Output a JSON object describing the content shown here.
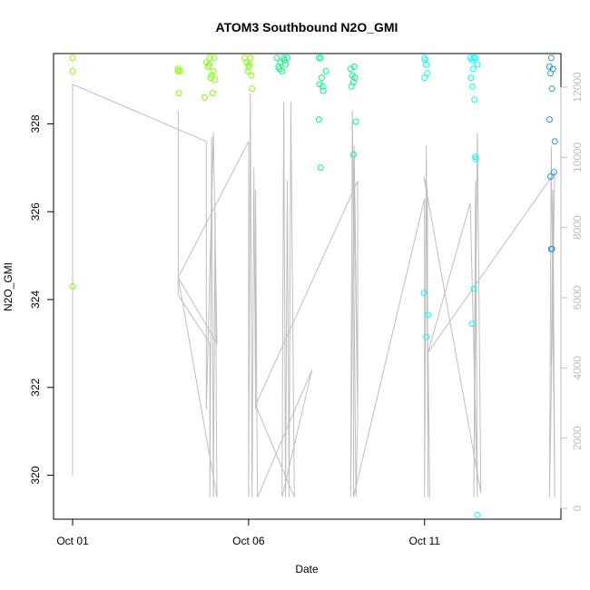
{
  "chart_data": {
    "type": "scatter",
    "title": "ATOM3 Southbound N2O_GMI",
    "xlabel": "Date",
    "ylabel": "N2O_GMI",
    "xlim": [
      0.0,
      14.0
    ],
    "ylim": [
      319.0,
      329.6
    ],
    "x_ticks": [
      {
        "value": 0,
        "label": "Oct 01"
      },
      {
        "value": 5,
        "label": "Oct 06"
      },
      {
        "value": 10,
        "label": "Oct 11"
      }
    ],
    "y_ticks": [
      320,
      322,
      324,
      326,
      328
    ],
    "y2": {
      "description": "secondary axis (right), grey",
      "lim": [
        0,
        12700
      ],
      "ticks": [
        0,
        2000,
        4000,
        6000,
        8000,
        10000,
        12000
      ],
      "color": "#bebebe"
    },
    "grid": false,
    "legend": "none",
    "point_colors": [
      "#7FFF00",
      "#00FF7F",
      "#00FFFF",
      "#1E9BE0"
    ],
    "points": [
      {
        "x": 0.0,
        "y": 329.5,
        "c": 0
      },
      {
        "x": 0.0,
        "y": 329.2,
        "c": 0
      },
      {
        "x": 0.0,
        "y": 324.3,
        "c": 0
      },
      {
        "x": 3.0,
        "y": 329.25,
        "c": 0
      },
      {
        "x": 3.0,
        "y": 329.2,
        "c": 0
      },
      {
        "x": 3.02,
        "y": 328.7,
        "c": 0
      },
      {
        "x": 3.05,
        "y": 329.2,
        "c": 0
      },
      {
        "x": 3.8,
        "y": 329.4,
        "c": 0
      },
      {
        "x": 3.85,
        "y": 329.3,
        "c": 0
      },
      {
        "x": 3.9,
        "y": 329.5,
        "c": 0
      },
      {
        "x": 3.95,
        "y": 329.1,
        "c": 0
      },
      {
        "x": 4.0,
        "y": 329.2,
        "c": 0
      },
      {
        "x": 3.92,
        "y": 329.05,
        "c": 0
      },
      {
        "x": 4.02,
        "y": 329.5,
        "c": 0
      },
      {
        "x": 4.05,
        "y": 329.0,
        "c": 0
      },
      {
        "x": 3.75,
        "y": 328.6,
        "c": 0
      },
      {
        "x": 3.98,
        "y": 328.7,
        "c": 0
      },
      {
        "x": 3.88,
        "y": 329.35,
        "c": 0
      },
      {
        "x": 4.9,
        "y": 329.5,
        "c": 0
      },
      {
        "x": 4.95,
        "y": 329.4,
        "c": 0
      },
      {
        "x": 5.0,
        "y": 329.3,
        "c": 0
      },
      {
        "x": 5.05,
        "y": 329.5,
        "c": 0
      },
      {
        "x": 5.08,
        "y": 329.1,
        "c": 0
      },
      {
        "x": 5.1,
        "y": 328.8,
        "c": 0
      },
      {
        "x": 5.02,
        "y": 329.35,
        "c": 0
      },
      {
        "x": 4.98,
        "y": 329.2,
        "c": 0
      },
      {
        "x": 5.8,
        "y": 329.5,
        "c": 1
      },
      {
        "x": 5.85,
        "y": 329.3,
        "c": 1
      },
      {
        "x": 5.9,
        "y": 329.4,
        "c": 1
      },
      {
        "x": 5.95,
        "y": 329.2,
        "c": 1
      },
      {
        "x": 6.0,
        "y": 329.5,
        "c": 1
      },
      {
        "x": 6.05,
        "y": 329.35,
        "c": 1
      },
      {
        "x": 6.1,
        "y": 329.5,
        "c": 1
      },
      {
        "x": 5.88,
        "y": 329.25,
        "c": 1
      },
      {
        "x": 6.02,
        "y": 329.45,
        "c": 1
      },
      {
        "x": 7.0,
        "y": 329.5,
        "c": 1
      },
      {
        "x": 7.05,
        "y": 329.5,
        "c": 1
      },
      {
        "x": 7.02,
        "y": 328.9,
        "c": 1
      },
      {
        "x": 7.08,
        "y": 329.05,
        "c": 1
      },
      {
        "x": 7.1,
        "y": 328.85,
        "c": 1
      },
      {
        "x": 7.12,
        "y": 328.75,
        "c": 1
      },
      {
        "x": 7.2,
        "y": 329.2,
        "c": 1
      },
      {
        "x": 7.0,
        "y": 328.1,
        "c": 1
      },
      {
        "x": 7.05,
        "y": 327.0,
        "c": 1
      },
      {
        "x": 7.9,
        "y": 329.25,
        "c": 1
      },
      {
        "x": 7.95,
        "y": 329.1,
        "c": 1
      },
      {
        "x": 8.0,
        "y": 329.3,
        "c": 1
      },
      {
        "x": 8.02,
        "y": 329.05,
        "c": 1
      },
      {
        "x": 7.98,
        "y": 328.95,
        "c": 1
      },
      {
        "x": 7.92,
        "y": 328.85,
        "c": 1
      },
      {
        "x": 8.05,
        "y": 328.05,
        "c": 1
      },
      {
        "x": 7.98,
        "y": 327.3,
        "c": 1
      },
      {
        "x": 10.0,
        "y": 329.5,
        "c": 2
      },
      {
        "x": 10.02,
        "y": 329.45,
        "c": 2
      },
      {
        "x": 10.05,
        "y": 329.35,
        "c": 2
      },
      {
        "x": 10.08,
        "y": 329.15,
        "c": 2
      },
      {
        "x": 10.0,
        "y": 329.05,
        "c": 2
      },
      {
        "x": 9.98,
        "y": 324.15,
        "c": 2
      },
      {
        "x": 10.1,
        "y": 323.65,
        "c": 2
      },
      {
        "x": 10.05,
        "y": 323.15,
        "c": 2
      },
      {
        "x": 11.3,
        "y": 329.5,
        "c": 2
      },
      {
        "x": 11.35,
        "y": 329.45,
        "c": 2
      },
      {
        "x": 11.4,
        "y": 329.5,
        "c": 2
      },
      {
        "x": 11.45,
        "y": 329.5,
        "c": 2
      },
      {
        "x": 11.5,
        "y": 329.35,
        "c": 2
      },
      {
        "x": 11.38,
        "y": 329.25,
        "c": 2
      },
      {
        "x": 11.32,
        "y": 329.05,
        "c": 2
      },
      {
        "x": 11.36,
        "y": 328.85,
        "c": 2
      },
      {
        "x": 11.42,
        "y": 328.55,
        "c": 2
      },
      {
        "x": 11.44,
        "y": 327.25,
        "c": 2
      },
      {
        "x": 11.46,
        "y": 327.2,
        "c": 2
      },
      {
        "x": 11.4,
        "y": 324.25,
        "c": 2
      },
      {
        "x": 11.35,
        "y": 323.45,
        "c": 2
      },
      {
        "x": 11.5,
        "y": 319.1,
        "c": 2
      },
      {
        "x": 13.6,
        "y": 329.5,
        "c": 3
      },
      {
        "x": 13.55,
        "y": 329.3,
        "c": 3
      },
      {
        "x": 13.58,
        "y": 329.15,
        "c": 3
      },
      {
        "x": 13.65,
        "y": 329.25,
        "c": 3
      },
      {
        "x": 13.62,
        "y": 328.8,
        "c": 3
      },
      {
        "x": 13.55,
        "y": 328.1,
        "c": 3
      },
      {
        "x": 13.7,
        "y": 327.6,
        "c": 3
      },
      {
        "x": 13.68,
        "y": 326.9,
        "c": 3
      },
      {
        "x": 13.58,
        "y": 326.8,
        "c": 3
      },
      {
        "x": 13.6,
        "y": 325.15,
        "c": 3
      },
      {
        "x": 13.62,
        "y": 325.15,
        "c": 3
      }
    ],
    "trace": [
      [
        0.0,
        320.0
      ],
      [
        0.0,
        328.9
      ],
      [
        3.8,
        327.6
      ],
      [
        3.8,
        321.5
      ],
      [
        4.0,
        327.8
      ],
      [
        4.05,
        325.5
      ],
      [
        4.1,
        323.0
      ],
      [
        3.0,
        324.5
      ],
      [
        3.0,
        328.3
      ],
      [
        3.0,
        324.1
      ],
      [
        3.9,
        323.0
      ],
      [
        3.9,
        319.5
      ],
      [
        3.95,
        327.7
      ],
      [
        4.0,
        319.5
      ],
      [
        4.05,
        326.0
      ],
      [
        4.1,
        319.5
      ],
      [
        3.0,
        324.5
      ],
      [
        5.0,
        327.6
      ],
      [
        5.0,
        319.5
      ],
      [
        5.05,
        328.7
      ],
      [
        5.1,
        319.5
      ],
      [
        5.15,
        327.0
      ],
      [
        5.2,
        321.5
      ],
      [
        5.2,
        326.5
      ],
      [
        5.25,
        319.5
      ],
      [
        6.8,
        322.4
      ],
      [
        5.95,
        319.5
      ],
      [
        6.0,
        328.5
      ],
      [
        6.05,
        319.5
      ],
      [
        6.1,
        326.7
      ],
      [
        6.15,
        319.5
      ],
      [
        6.2,
        328.5
      ],
      [
        6.3,
        319.5
      ],
      [
        5.2,
        321.6
      ],
      [
        8.1,
        326.7
      ],
      [
        8.1,
        321.5
      ],
      [
        8.0,
        327.5
      ],
      [
        7.9,
        319.5
      ],
      [
        7.95,
        328.3
      ],
      [
        8.05,
        319.5
      ],
      [
        8.1,
        321.3
      ],
      [
        8.0,
        326.6
      ],
      [
        7.98,
        319.5
      ],
      [
        10.0,
        326.3
      ],
      [
        10.0,
        319.5
      ],
      [
        10.05,
        327.5
      ],
      [
        10.1,
        319.5
      ],
      [
        10.08,
        326.5
      ],
      [
        9.98,
        326.8
      ],
      [
        11.6,
        319.6
      ],
      [
        11.5,
        327.8
      ],
      [
        11.4,
        319.5
      ],
      [
        11.45,
        326.7
      ],
      [
        11.5,
        319.5
      ],
      [
        11.3,
        326.2
      ],
      [
        10.1,
        322.8
      ],
      [
        10.15,
        319.5
      ],
      [
        10.1,
        322.8
      ],
      [
        13.7,
        326.9
      ],
      [
        13.55,
        319.5
      ],
      [
        13.6,
        327.5
      ],
      [
        13.7,
        319.5
      ],
      [
        13.65,
        326.5
      ],
      [
        13.6,
        322.5
      ]
    ]
  }
}
